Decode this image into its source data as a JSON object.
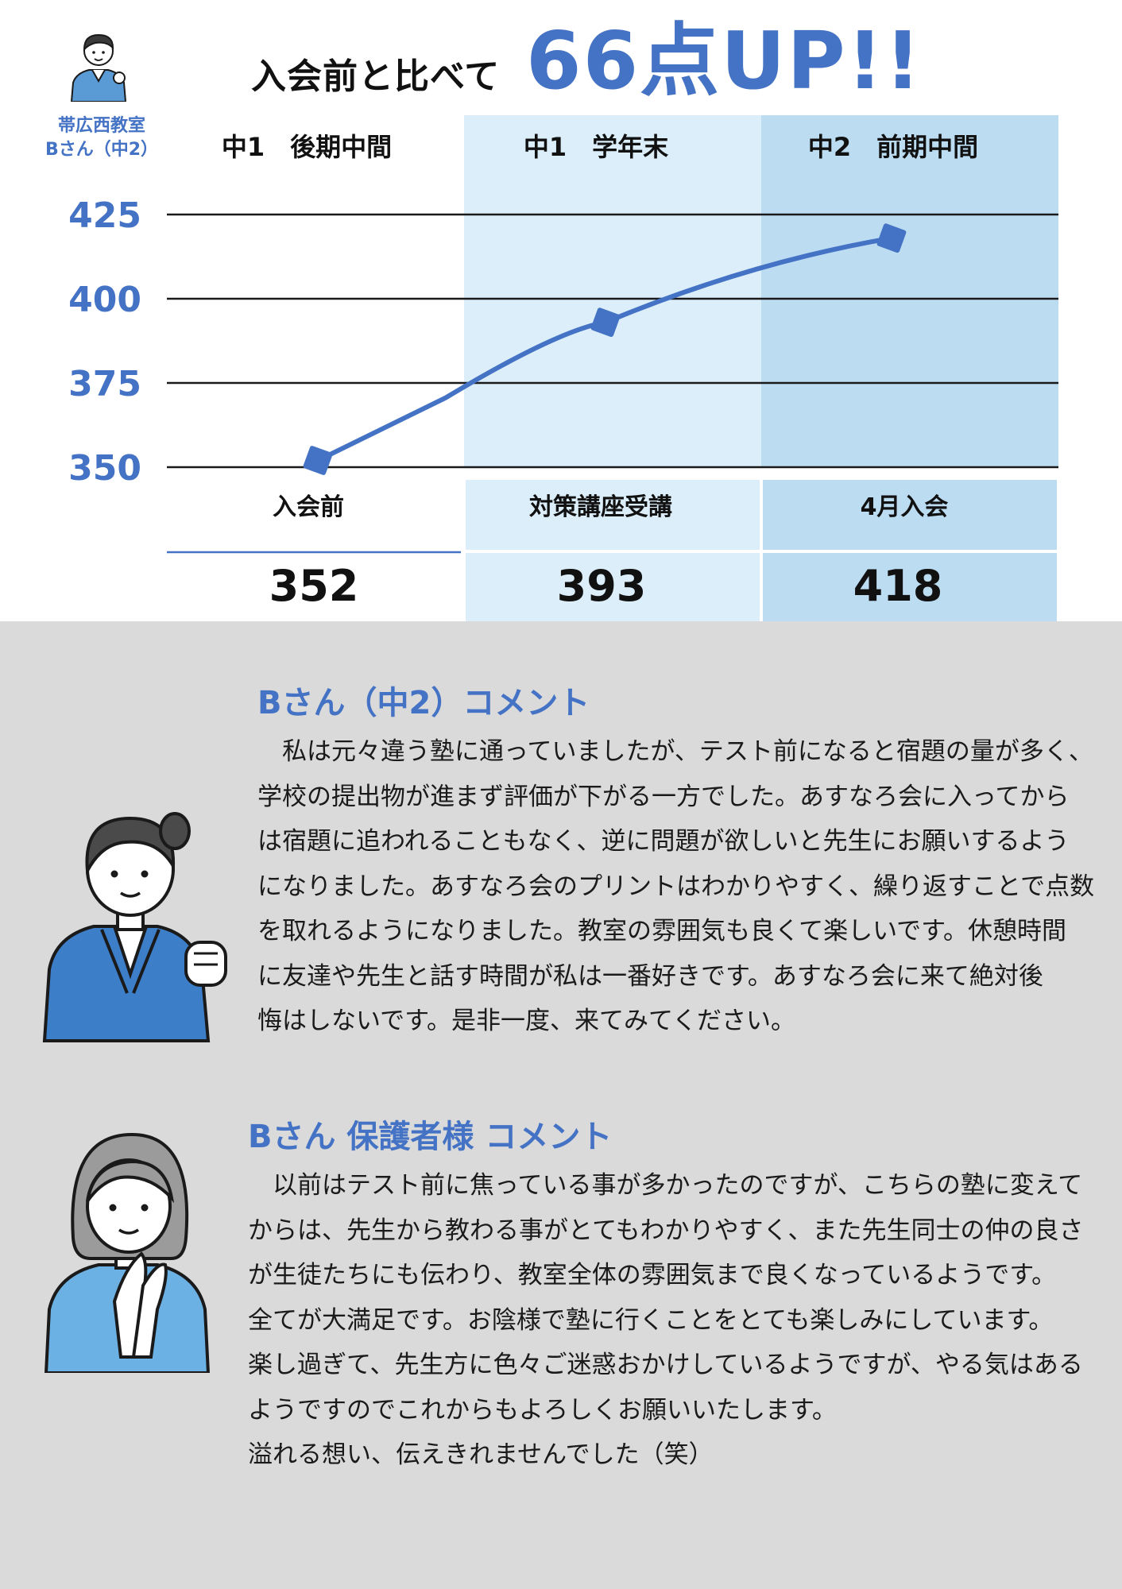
{
  "header": {
    "headline_prefix": "入会前と比べて",
    "headline_highlight": "66点UP!!",
    "classroom": "帯広西教室",
    "student_label": "Bさん（中2）"
  },
  "chart_data": {
    "type": "line",
    "categories": [
      "中1　後期中間",
      "中1　学年末",
      "中2　前期中間"
    ],
    "stage_labels": [
      "入会前",
      "対策講座受講",
      "4月入会"
    ],
    "series": [
      {
        "values": [
          352,
          393,
          418
        ]
      }
    ],
    "value_labels": [
      "352",
      "393",
      "418"
    ],
    "yticks": [
      350,
      375,
      400,
      425
    ],
    "ylim": [
      350,
      425
    ],
    "grid": true,
    "colors": {
      "line": "#4472c4",
      "band1": "#dceefa",
      "band2": "#bcdcf2",
      "axis_text": "#4472c4"
    }
  },
  "student_comment": {
    "title": "Bさん（中2）コメント",
    "body": "　私は元々違う塾に通っていましたが、テスト前になると宿題の量が多く、\n学校の提出物が進まず評価が下がる一方でした。あすなろ会に入ってから\nは宿題に追われることもなく、逆に問題が欲しいと先生にお願いするよう\nになりました。あすなろ会のプリントはわかりやすく、繰り返すことで点数\nを取れるようになりました。教室の雰囲気も良くて楽しいです。休憩時間\nに友達や先生と話す時間が私は一番好きです。あすなろ会に来て絶対後\n悔はしないです。是非一度、来てみてください。"
  },
  "parent_comment": {
    "title": "Bさん 保護者様 コメント",
    "body": "　以前はテスト前に焦っている事が多かったのですが、こちらの塾に変えて\nからは、先生から教わる事がとてもわかりやすく、また先生同士の仲の良さ\nが生徒たちにも伝わり、教室全体の雰囲気まで良くなっているようです。\n全てが大満足です。お陰様で塾に行くことをとても楽しみにしています。\n楽し過ぎて、先生方に色々ご迷惑おかけしているようですが、やる気はある\nようですのでこれからもよろしくお願いいたします。\n溢れる想い、伝えきれませんでした（笑）"
  },
  "icons": {
    "small_avatar": "student-avatar-icon",
    "student": "student-fist-pump-icon",
    "parent": "parent-praying-hands-icon"
  }
}
